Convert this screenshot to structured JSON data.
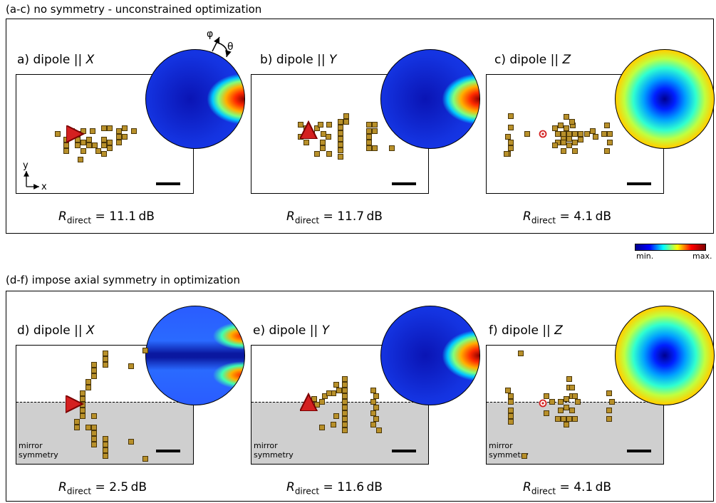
{
  "sections": [
    {
      "title": "(a-c) no symmetry - unconstrained optimization"
    },
    {
      "title": "(d-f) impose axial symmetry in optimization"
    }
  ],
  "panels": [
    {
      "id": "a",
      "label": "a) dipole || ",
      "axis": "X",
      "r_value": "11.1",
      "pattern": "side",
      "mirror": false
    },
    {
      "id": "b",
      "label": "b) dipole || ",
      "axis": "Y",
      "r_value": "11.7",
      "pattern": "side",
      "mirror": false
    },
    {
      "id": "c",
      "label": "c) dipole || ",
      "axis": "Z",
      "r_value": "4.1",
      "pattern": "ring",
      "mirror": false
    },
    {
      "id": "d",
      "label": "d) dipole || ",
      "axis": "X",
      "r_value": "2.5",
      "pattern": "lobes",
      "mirror": true
    },
    {
      "id": "e",
      "label": "e) dipole || ",
      "axis": "Y",
      "r_value": "11.6",
      "pattern": "side",
      "mirror": true
    },
    {
      "id": "f",
      "label": "f) dipole || ",
      "axis": "Z",
      "r_value": "4.1",
      "pattern": "ring",
      "mirror": true
    }
  ],
  "r_label": {
    "symbol": "R",
    "subscript": "direct",
    "unit": "dB"
  },
  "mirror_text": {
    "line1": "mirror",
    "line2": "symmetry"
  },
  "angles": {
    "phi": "φ",
    "theta": "θ"
  },
  "axes_labels": {
    "x": "x",
    "y": "y"
  },
  "colorbar": {
    "min": "min.",
    "max": "max.",
    "colormap": "jet"
  },
  "colors": {
    "particle": "#b8902a",
    "dipole": "#d42020",
    "mirror_region": "#cfcfcf"
  }
}
